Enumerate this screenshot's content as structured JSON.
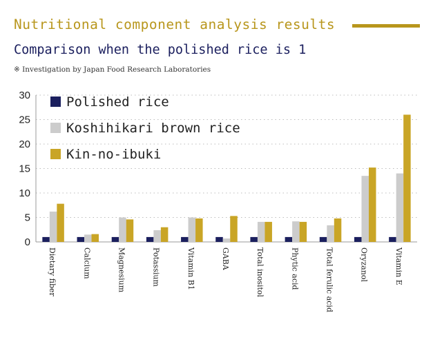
{
  "header": {
    "title": "Nutritional component analysis results",
    "subtitle": "Comparison when the polished rice is 1",
    "note": "※ Investigation by Japan Food Research Laboratories"
  },
  "chart_data": {
    "type": "bar",
    "categories": [
      "Dietary fiber",
      "Calcium",
      "Magnesium",
      "Potassium",
      "Vitamin B1",
      "GABA",
      "Total inositol",
      "Phytic acid",
      "Total ferulic acid",
      "Oryzanol",
      "Vitamin E"
    ],
    "series": [
      {
        "name": "Polished rice",
        "color": "#1b1f5e",
        "values": [
          1,
          1,
          1,
          1,
          1,
          1,
          1,
          1,
          1,
          1,
          1
        ]
      },
      {
        "name": "Koshihikari brown rice",
        "color": "#cccccc",
        "values": [
          6.2,
          1.5,
          5.0,
          2.4,
          5.0,
          0.7,
          4.1,
          4.2,
          3.4,
          13.5,
          14.0
        ]
      },
      {
        "name": "Kin-no-ibuki",
        "color": "#c9a526",
        "values": [
          7.8,
          1.6,
          4.6,
          3.0,
          4.8,
          5.3,
          4.1,
          4.1,
          4.8,
          15.2,
          26.0
        ]
      }
    ],
    "yticks": [
      0,
      5,
      10,
      15,
      20,
      25,
      30
    ],
    "ylim": [
      0,
      30
    ],
    "grid": true,
    "legend_position": "top-left",
    "axis_color": "#999999",
    "grid_color": "#bbbbbb"
  }
}
